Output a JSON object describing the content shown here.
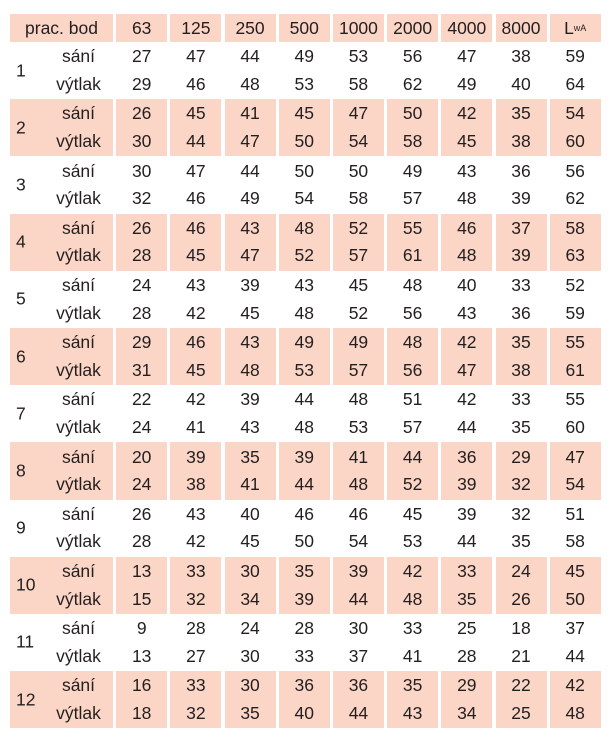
{
  "header": {
    "first": "prac. bod",
    "bands": [
      "63",
      "125",
      "250",
      "500",
      "1000",
      "2000",
      "4000",
      "8000"
    ],
    "lwa_main": "L",
    "lwa_sub": "wA"
  },
  "colors": {
    "highlight": "#fbd5c5",
    "text": "#231f20"
  },
  "groups": [
    {
      "id": "1",
      "rows": [
        {
          "label": "sání",
          "values": [
            "27",
            "47",
            "44",
            "49",
            "53",
            "56",
            "47",
            "38",
            "59"
          ]
        },
        {
          "label": "výtlak",
          "values": [
            "29",
            "46",
            "48",
            "53",
            "58",
            "62",
            "49",
            "40",
            "64"
          ]
        }
      ]
    },
    {
      "id": "2",
      "rows": [
        {
          "label": "sání",
          "values": [
            "26",
            "45",
            "41",
            "45",
            "47",
            "50",
            "42",
            "35",
            "54"
          ]
        },
        {
          "label": "výtlak",
          "values": [
            "30",
            "44",
            "47",
            "50",
            "54",
            "58",
            "45",
            "38",
            "60"
          ]
        }
      ]
    },
    {
      "id": "3",
      "rows": [
        {
          "label": "sání",
          "values": [
            "30",
            "47",
            "44",
            "50",
            "50",
            "49",
            "43",
            "36",
            "56"
          ]
        },
        {
          "label": "výtlak",
          "values": [
            "32",
            "46",
            "49",
            "54",
            "58",
            "57",
            "48",
            "39",
            "62"
          ]
        }
      ]
    },
    {
      "id": "4",
      "rows": [
        {
          "label": "sání",
          "values": [
            "26",
            "46",
            "43",
            "48",
            "52",
            "55",
            "46",
            "37",
            "58"
          ]
        },
        {
          "label": "výtlak",
          "values": [
            "28",
            "45",
            "47",
            "52",
            "57",
            "61",
            "48",
            "39",
            "63"
          ]
        }
      ]
    },
    {
      "id": "5",
      "rows": [
        {
          "label": "sání",
          "values": [
            "24",
            "43",
            "39",
            "43",
            "45",
            "48",
            "40",
            "33",
            "52"
          ]
        },
        {
          "label": "výtlak",
          "values": [
            "28",
            "42",
            "45",
            "48",
            "52",
            "56",
            "43",
            "36",
            "59"
          ]
        }
      ]
    },
    {
      "id": "6",
      "rows": [
        {
          "label": "sání",
          "values": [
            "29",
            "46",
            "43",
            "49",
            "49",
            "48",
            "42",
            "35",
            "55"
          ]
        },
        {
          "label": "výtlak",
          "values": [
            "31",
            "45",
            "48",
            "53",
            "57",
            "56",
            "47",
            "38",
            "61"
          ]
        }
      ]
    },
    {
      "id": "7",
      "rows": [
        {
          "label": "sání",
          "values": [
            "22",
            "42",
            "39",
            "44",
            "48",
            "51",
            "42",
            "33",
            "55"
          ]
        },
        {
          "label": "výtlak",
          "values": [
            "24",
            "41",
            "43",
            "48",
            "53",
            "57",
            "44",
            "35",
            "60"
          ]
        }
      ]
    },
    {
      "id": "8",
      "rows": [
        {
          "label": "sání",
          "values": [
            "20",
            "39",
            "35",
            "39",
            "41",
            "44",
            "36",
            "29",
            "47"
          ]
        },
        {
          "label": "výtlak",
          "values": [
            "24",
            "38",
            "41",
            "44",
            "48",
            "52",
            "39",
            "32",
            "54"
          ]
        }
      ]
    },
    {
      "id": "9",
      "rows": [
        {
          "label": "sání",
          "values": [
            "26",
            "43",
            "40",
            "46",
            "46",
            "45",
            "39",
            "32",
            "51"
          ]
        },
        {
          "label": "výtlak",
          "values": [
            "28",
            "42",
            "45",
            "50",
            "54",
            "53",
            "44",
            "35",
            "58"
          ]
        }
      ]
    },
    {
      "id": "10",
      "rows": [
        {
          "label": "sání",
          "values": [
            "13",
            "33",
            "30",
            "35",
            "39",
            "42",
            "33",
            "24",
            "45"
          ]
        },
        {
          "label": "výtlak",
          "values": [
            "15",
            "32",
            "34",
            "39",
            "44",
            "48",
            "35",
            "26",
            "50"
          ]
        }
      ]
    },
    {
      "id": "11",
      "rows": [
        {
          "label": "sání",
          "values": [
            "9",
            "28",
            "24",
            "28",
            "30",
            "33",
            "25",
            "18",
            "37"
          ]
        },
        {
          "label": "výtlak",
          "values": [
            "13",
            "27",
            "30",
            "33",
            "37",
            "41",
            "28",
            "21",
            "44"
          ]
        }
      ]
    },
    {
      "id": "12",
      "rows": [
        {
          "label": "sání",
          "values": [
            "16",
            "33",
            "30",
            "36",
            "36",
            "35",
            "29",
            "22",
            "42"
          ]
        },
        {
          "label": "výtlak",
          "values": [
            "18",
            "32",
            "35",
            "40",
            "44",
            "43",
            "34",
            "25",
            "48"
          ]
        }
      ]
    }
  ]
}
